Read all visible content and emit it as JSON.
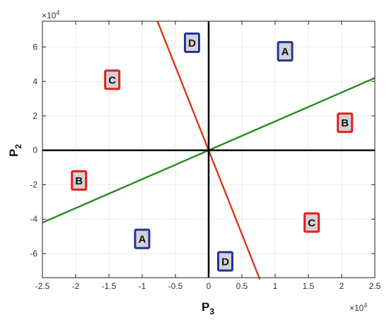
{
  "chart_data": {
    "type": "line",
    "x_axis": {
      "label": "P",
      "label_sub": "3",
      "multiplier": "×10",
      "multiplier_exp": "4",
      "lim": [
        -25000,
        25000
      ],
      "ticks": [
        -25000,
        -20000,
        -15000,
        -10000,
        -5000,
        0,
        5000,
        10000,
        15000,
        20000,
        25000
      ],
      "tick_labels": [
        "-2.5",
        "-2",
        "-1.5",
        "-1",
        "-0.5",
        "0",
        "0.5",
        "1",
        "1.5",
        "2",
        "2.5"
      ]
    },
    "y_axis": {
      "label": "P",
      "label_sub": "2",
      "multiplier": "×10",
      "multiplier_exp": "4",
      "lim": [
        -74000,
        75000
      ],
      "ticks": [
        -60000,
        -40000,
        -20000,
        0,
        20000,
        40000,
        60000
      ],
      "tick_labels": [
        "-6",
        "-4",
        "-2",
        "0",
        "2",
        "4",
        "6"
      ]
    },
    "grid": true,
    "series": [
      {
        "color": "#2a8a1f",
        "x": [
          -25000,
          25000
        ],
        "y": [
          -42000,
          42000
        ]
      },
      {
        "color": "#d63a1a",
        "x": [
          -7700,
          7700
        ],
        "y": [
          75000,
          -75000
        ]
      },
      {
        "color": "#000000",
        "x": [
          -25000,
          25000
        ],
        "y": [
          0,
          0
        ]
      },
      {
        "color": "#000000",
        "x": [
          0,
          0
        ],
        "y": [
          -74000,
          75000
        ]
      }
    ],
    "region_labels": [
      {
        "text": "D",
        "x": -2500,
        "y": 62500,
        "border": "#23349a"
      },
      {
        "text": "A",
        "x": 11500,
        "y": 57500,
        "border": "#23349a"
      },
      {
        "text": "C",
        "x": -14500,
        "y": 41000,
        "border": "#e41c1c"
      },
      {
        "text": "B",
        "x": 20500,
        "y": 16000,
        "border": "#e41c1c"
      },
      {
        "text": "B",
        "x": -19500,
        "y": -17500,
        "border": "#e41c1c"
      },
      {
        "text": "C",
        "x": 15500,
        "y": -42000,
        "border": "#e41c1c"
      },
      {
        "text": "A",
        "x": -10000,
        "y": -51500,
        "border": "#23349a"
      },
      {
        "text": "D",
        "x": 2500,
        "y": -64500,
        "border": "#23349a"
      }
    ]
  }
}
